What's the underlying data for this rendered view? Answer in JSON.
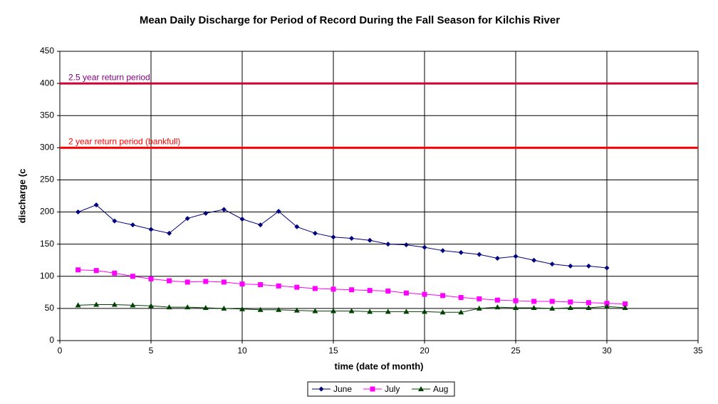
{
  "chart_data": {
    "type": "line",
    "title": "Mean Daily Discharge for Period of Record During the Fall Season for Kilchis River",
    "x_label": "time (date of month)",
    "y_label": "discharge (c",
    "x": [
      1,
      2,
      3,
      4,
      5,
      6,
      7,
      8,
      9,
      10,
      11,
      12,
      13,
      14,
      15,
      16,
      17,
      18,
      19,
      20,
      21,
      22,
      23,
      24,
      25,
      26,
      27,
      28,
      29,
      30,
      31
    ],
    "series": [
      {
        "name": "June",
        "color": "#000080",
        "marker": "diamond",
        "values": [
          200,
          211,
          186,
          180,
          173,
          167,
          190,
          198,
          204,
          189,
          180,
          201,
          177,
          167,
          161,
          159,
          156,
          150,
          149,
          145,
          140,
          137,
          134,
          128,
          131,
          125,
          119,
          116,
          116,
          113,
          null
        ]
      },
      {
        "name": "July",
        "color": "#ff00ff",
        "marker": "square",
        "values": [
          110,
          109,
          105,
          100,
          96,
          93,
          91,
          92,
          91,
          88,
          87,
          85,
          83,
          81,
          80,
          79,
          78,
          77,
          74,
          72,
          70,
          67,
          65,
          63,
          62,
          61,
          61,
          60,
          59,
          58,
          57
        ]
      },
      {
        "name": "Aug",
        "color": "#004000",
        "marker": "triangle",
        "values": [
          55,
          56,
          56,
          55,
          54,
          52,
          52,
          51,
          50,
          49,
          48,
          48,
          47,
          46,
          46,
          46,
          45,
          45,
          45,
          45,
          44,
          44,
          50,
          52,
          51,
          51,
          50,
          51,
          51,
          53,
          51
        ]
      }
    ],
    "reference_lines": [
      {
        "value": 400,
        "label": "2.5 year return period",
        "color": "#cc0033",
        "label_color": "#800080"
      },
      {
        "value": 300,
        "label": "2 year return period (bankfull)",
        "color": "#ff0000",
        "label_color": "#ff0000"
      }
    ],
    "xlim": [
      0,
      35
    ],
    "xticks": [
      0,
      5,
      10,
      15,
      20,
      25,
      30,
      35
    ],
    "ylim": [
      0,
      450
    ],
    "yticks": [
      0,
      50,
      100,
      150,
      200,
      250,
      300,
      350,
      400,
      450
    ],
    "grid": true,
    "legend": "bottom"
  }
}
